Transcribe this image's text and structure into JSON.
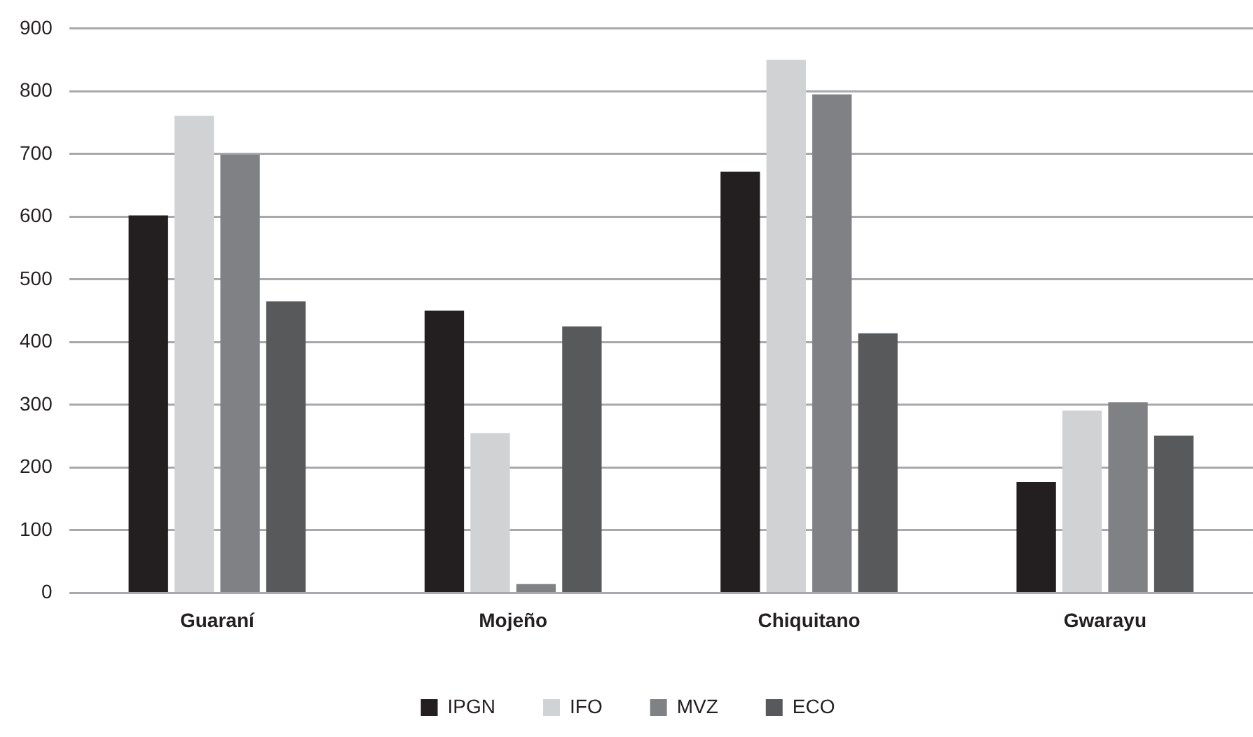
{
  "chart_data": {
    "type": "bar",
    "categories": [
      "Guaraní",
      "Mojeño",
      "Chiquitano",
      "Gwarayu"
    ],
    "series": [
      {
        "name": "IPGN",
        "color": "#231f20",
        "values": [
          602,
          450,
          672,
          177
        ]
      },
      {
        "name": "IFO",
        "color": "#d1d2d4",
        "values": [
          761,
          255,
          850,
          291
        ]
      },
      {
        "name": "MVZ",
        "color": "#808184",
        "values": [
          699,
          14,
          795,
          304
        ]
      },
      {
        "name": "ECO",
        "color": "#58595b",
        "values": [
          465,
          425,
          414,
          251
        ]
      }
    ],
    "ylim": [
      0,
      900
    ],
    "yticks": [
      0,
      100,
      200,
      300,
      400,
      500,
      600,
      700,
      800,
      900
    ],
    "grid": "y",
    "legend": "bottom"
  }
}
